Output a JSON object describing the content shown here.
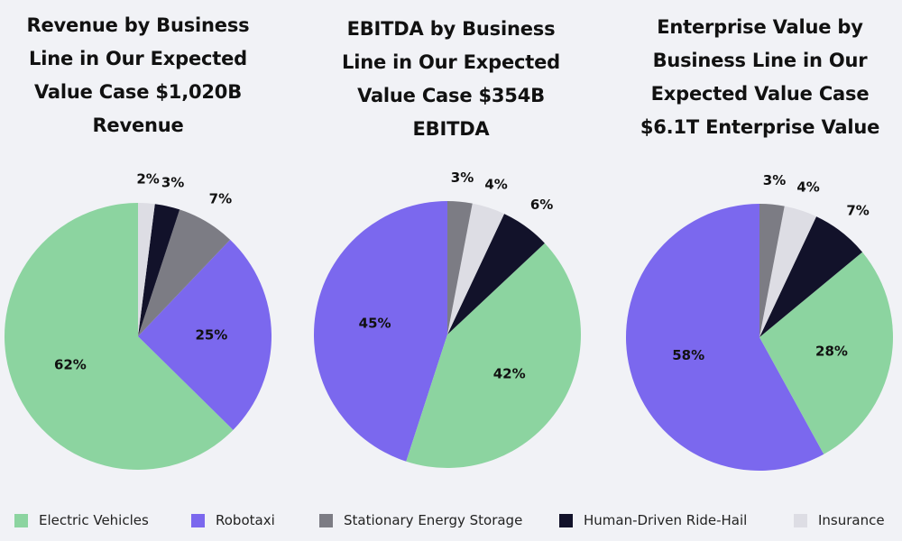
{
  "colors": {
    "Electric Vehicles": "#8cd4a0",
    "Robotaxi": "#7b68ee",
    "Stationary Energy Storage": "#7c7c84",
    "Human-Driven Ride-Hail": "#12122a",
    "Insurance": "#dddde4"
  },
  "legend": [
    {
      "label": "Electric Vehicles"
    },
    {
      "label": "Robotaxi"
    },
    {
      "label": "Stationary Energy Storage"
    },
    {
      "label": "Human-Driven Ride-Hail"
    },
    {
      "label": "Insurance"
    }
  ],
  "chart_data": [
    {
      "type": "pie",
      "title": "Revenue by Business Line in Our Expected Value Case $1,020B Revenue",
      "title_lines": [
        "Revenue by Business",
        "Line in Our Expected",
        "Value Case $1,020B",
        "Revenue"
      ],
      "slices": [
        {
          "label": "Electric Vehicles",
          "value": 62,
          "text": "62%"
        },
        {
          "label": "Robotaxi",
          "value": 25,
          "text": "25%"
        },
        {
          "label": "Stationary Energy Storage",
          "value": 7,
          "text": "7%"
        },
        {
          "label": "Human-Driven Ride-Hail",
          "value": 3,
          "text": "3%"
        },
        {
          "label": "Insurance",
          "value": 2,
          "text": "2%"
        }
      ]
    },
    {
      "type": "pie",
      "title": "EBITDA by Business Line in Our Expected Value Case $354B EBITDA",
      "title_lines": [
        "EBITDA by Business",
        "Line in Our Expected",
        "Value Case $354B",
        "EBITDA"
      ],
      "slices": [
        {
          "label": "Robotaxi",
          "value": 45,
          "text": "45%"
        },
        {
          "label": "Electric Vehicles",
          "value": 42,
          "text": "42%"
        },
        {
          "label": "Human-Driven Ride-Hail",
          "value": 6,
          "text": "6%"
        },
        {
          "label": "Insurance",
          "value": 4,
          "text": "4%"
        },
        {
          "label": "Stationary Energy Storage",
          "value": 3,
          "text": "3%"
        }
      ]
    },
    {
      "type": "pie",
      "title": "Enterprise Value by Business Line in Our Expected Value Case $6.1T Enterprise Value",
      "title_lines": [
        "Enterprise Value by",
        "Business Line in Our",
        "Expected Value Case",
        "$6.1T Enterprise Value"
      ],
      "slices": [
        {
          "label": "Robotaxi",
          "value": 58,
          "text": "58%"
        },
        {
          "label": "Electric Vehicles",
          "value": 28,
          "text": "28%"
        },
        {
          "label": "Human-Driven Ride-Hail",
          "value": 7,
          "text": "7%"
        },
        {
          "label": "Insurance",
          "value": 4,
          "text": "4%"
        },
        {
          "label": "Stationary Energy Storage",
          "value": 3,
          "text": "3%"
        }
      ]
    }
  ]
}
